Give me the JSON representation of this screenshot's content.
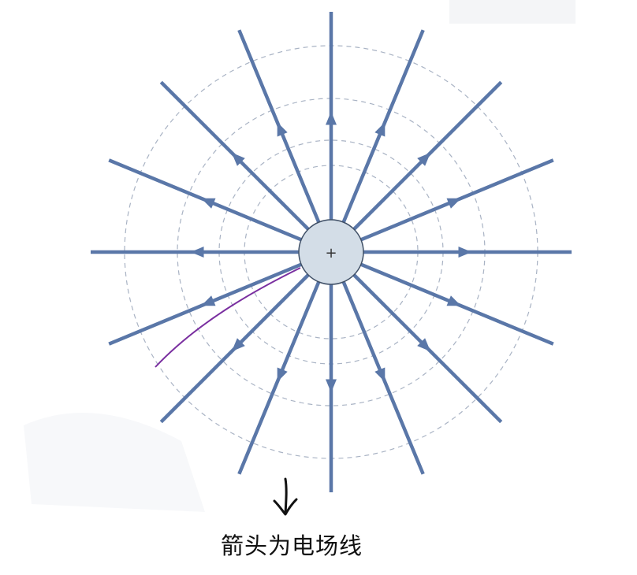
{
  "diagram": {
    "charge_symbol": "+",
    "field_line_count": 16,
    "equipotential_circle_count": 4,
    "colors": {
      "field_line": "#5a77a8",
      "equipotential": "#a9b3c4",
      "charge_fill": "#d3dde7",
      "charge_stroke": "#3f4f66",
      "annotation": "#7a2fa0",
      "handwritten_arrow": "#111111"
    },
    "icons": {
      "pointer_arrow": "handwritten-down-arrow-icon"
    }
  },
  "caption": {
    "text": "箭头为电场线"
  }
}
